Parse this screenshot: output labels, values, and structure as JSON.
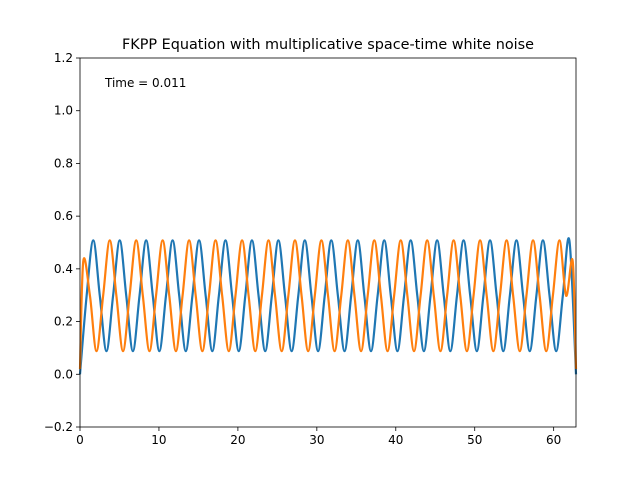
{
  "chart_data": {
    "type": "line",
    "title": "FKPP Equation with multiplicative space-time white noise",
    "annotation": "Time = 0.011",
    "xlabel": "",
    "ylabel": "",
    "xlim": [
      0,
      62.83
    ],
    "ylim": [
      -0.2,
      1.2
    ],
    "x_ticks": [
      0,
      10,
      20,
      30,
      40,
      50,
      60
    ],
    "y_ticks": [
      -0.2,
      0.0,
      0.2,
      0.4,
      0.6,
      0.8,
      1.0,
      1.2
    ],
    "x_tick_labels": [
      "0",
      "10",
      "20",
      "30",
      "40",
      "50",
      "60"
    ],
    "y_tick_labels": [
      "−0.2",
      "0.0",
      "0.2",
      "0.4",
      "0.6",
      "0.8",
      "1.0",
      "1.2"
    ],
    "grid": false,
    "legend": "none",
    "series": [
      {
        "color": "#1f77b4",
        "x": [
          0,
          0.84,
          1.68,
          2.51,
          3.35,
          4.19,
          5.03,
          5.86,
          6.7,
          7.54,
          8.38,
          9.22,
          10.05,
          10.89,
          11.73,
          12.57,
          13.4,
          14.24,
          15.08,
          15.92,
          16.76,
          17.59,
          18.43,
          19.27,
          20.11,
          20.94,
          21.78,
          22.62,
          23.46,
          24.3,
          25.13,
          25.97,
          26.81,
          27.65,
          28.48,
          29.32,
          30.16,
          31.0,
          31.83,
          32.67,
          33.51,
          34.35,
          35.19,
          36.02,
          36.86,
          37.7,
          38.54,
          39.37,
          40.21,
          41.05,
          41.89,
          42.73,
          43.56,
          44.4,
          45.24,
          46.08,
          46.91,
          47.75,
          48.59,
          49.43,
          50.27,
          51.1,
          51.94,
          52.78,
          53.62,
          54.45,
          55.29,
          56.13,
          56.97,
          57.81,
          58.64,
          59.48,
          60.32,
          61.16,
          61.99,
          62.83
        ],
        "values": [
          0.0,
          0.298,
          0.508,
          0.298,
          0.088,
          0.298,
          0.508,
          0.298,
          0.088,
          0.298,
          0.508,
          0.298,
          0.088,
          0.298,
          0.508,
          0.298,
          0.088,
          0.298,
          0.508,
          0.298,
          0.088,
          0.298,
          0.508,
          0.298,
          0.088,
          0.298,
          0.508,
          0.298,
          0.088,
          0.298,
          0.508,
          0.298,
          0.088,
          0.298,
          0.508,
          0.298,
          0.088,
          0.298,
          0.508,
          0.298,
          0.088,
          0.298,
          0.508,
          0.298,
          0.088,
          0.298,
          0.508,
          0.298,
          0.088,
          0.298,
          0.508,
          0.298,
          0.088,
          0.298,
          0.508,
          0.298,
          0.088,
          0.298,
          0.508,
          0.298,
          0.088,
          0.298,
          0.508,
          0.298,
          0.088,
          0.298,
          0.508,
          0.298,
          0.088,
          0.298,
          0.508,
          0.298,
          0.088,
          0.298,
          0.508,
          0.0
        ]
      },
      {
        "color": "#ff7f0e",
        "x": [
          0,
          0.42,
          1.26,
          2.09,
          2.93,
          3.77,
          4.61,
          5.45,
          6.28,
          7.12,
          7.96,
          8.8,
          9.63,
          10.47,
          11.31,
          12.15,
          12.99,
          13.82,
          14.66,
          15.5,
          16.34,
          17.17,
          18.01,
          18.85,
          19.69,
          20.53,
          21.36,
          22.2,
          23.04,
          23.88,
          24.71,
          25.55,
          26.39,
          27.23,
          28.07,
          28.9,
          29.74,
          30.58,
          31.42,
          32.25,
          33.09,
          33.93,
          34.77,
          35.6,
          36.44,
          37.28,
          38.12,
          38.96,
          39.79,
          40.63,
          41.47,
          42.31,
          43.14,
          43.98,
          44.82,
          45.66,
          46.5,
          47.33,
          48.17,
          49.01,
          49.85,
          50.68,
          51.52,
          52.36,
          53.2,
          54.04,
          54.87,
          55.71,
          56.55,
          57.39,
          58.22,
          59.06,
          59.9,
          60.74,
          61.58,
          62.41,
          62.83
        ],
        "values": [
          0.02,
          0.43,
          0.298,
          0.088,
          0.298,
          0.508,
          0.298,
          0.088,
          0.298,
          0.508,
          0.298,
          0.088,
          0.298,
          0.508,
          0.298,
          0.088,
          0.298,
          0.508,
          0.298,
          0.088,
          0.298,
          0.508,
          0.298,
          0.088,
          0.298,
          0.508,
          0.298,
          0.088,
          0.298,
          0.508,
          0.298,
          0.088,
          0.298,
          0.508,
          0.298,
          0.088,
          0.298,
          0.508,
          0.298,
          0.088,
          0.298,
          0.508,
          0.298,
          0.088,
          0.298,
          0.508,
          0.298,
          0.088,
          0.298,
          0.508,
          0.298,
          0.088,
          0.298,
          0.508,
          0.298,
          0.088,
          0.298,
          0.508,
          0.298,
          0.088,
          0.298,
          0.508,
          0.298,
          0.088,
          0.298,
          0.508,
          0.298,
          0.088,
          0.298,
          0.508,
          0.298,
          0.088,
          0.298,
          0.508,
          0.298,
          0.43,
          0.02
        ]
      }
    ]
  }
}
